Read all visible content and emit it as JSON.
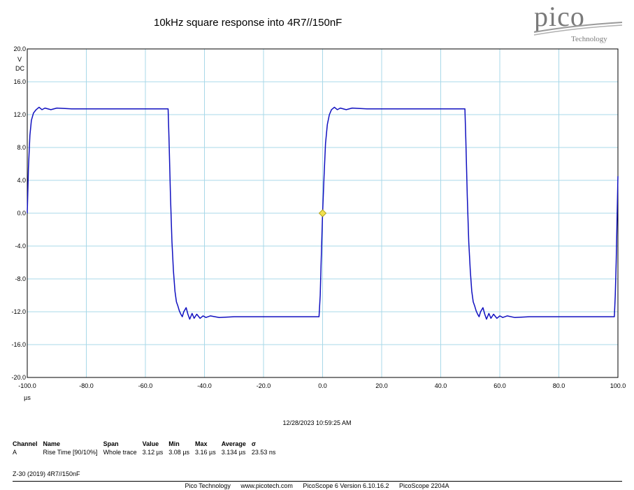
{
  "chart_data": {
    "type": "line",
    "title": "10kHz square response into 4R7//150nF",
    "ylabel_lines": [
      "V",
      "DC"
    ],
    "xlabel": "µs",
    "xlim": [
      -100,
      100
    ],
    "ylim": [
      -20,
      20
    ],
    "x_ticks": [
      "-100.0",
      "-80.0",
      "-60.0",
      "-40.0",
      "-20.0",
      "0.0",
      "20.0",
      "40.0",
      "60.0",
      "80.0",
      "100.0"
    ],
    "y_ticks": [
      "20.0",
      "16.0",
      "12.0",
      "8.0",
      "4.0",
      "0.0",
      "-4.0",
      "-8.0",
      "-12.0",
      "-16.0",
      "-20.0"
    ],
    "grid": true,
    "trigger_marker": {
      "x": 0,
      "y": 0,
      "color": "#f0e050"
    },
    "series": [
      {
        "color": "#1010c0",
        "points": [
          [
            -100,
            0
          ],
          [
            -99.6,
            5.5
          ],
          [
            -99.1,
            9.5
          ],
          [
            -98.6,
            11.3
          ],
          [
            -97.9,
            12.2
          ],
          [
            -97,
            12.6
          ],
          [
            -96,
            12.9
          ],
          [
            -95,
            12.6
          ],
          [
            -94,
            12.8
          ],
          [
            -92,
            12.6
          ],
          [
            -90,
            12.8
          ],
          [
            -85,
            12.7
          ],
          [
            -80,
            12.7
          ],
          [
            -70,
            12.7
          ],
          [
            -60,
            12.7
          ],
          [
            -52.3,
            12.7
          ],
          [
            -52,
            9.0
          ],
          [
            -51.5,
            2.0
          ],
          [
            -51,
            -3.5
          ],
          [
            -50.5,
            -7.0
          ],
          [
            -50,
            -9.5
          ],
          [
            -49.5,
            -10.8
          ],
          [
            -49,
            -11.3
          ],
          [
            -48.5,
            -11.9
          ],
          [
            -48,
            -12.3
          ],
          [
            -47.5,
            -12.6
          ],
          [
            -47,
            -12.0
          ],
          [
            -46.2,
            -11.5
          ],
          [
            -45.6,
            -12.3
          ],
          [
            -45,
            -12.9
          ],
          [
            -44.2,
            -12.2
          ],
          [
            -43.5,
            -12.8
          ],
          [
            -42.6,
            -12.3
          ],
          [
            -41.5,
            -12.8
          ],
          [
            -40.5,
            -12.5
          ],
          [
            -39.5,
            -12.7
          ],
          [
            -38,
            -12.5
          ],
          [
            -35,
            -12.7
          ],
          [
            -30,
            -12.6
          ],
          [
            -20,
            -12.6
          ],
          [
            -10,
            -12.6
          ],
          [
            -1.2,
            -12.6
          ],
          [
            -0.8,
            -10.0
          ],
          [
            -0.5,
            -6.0
          ],
          [
            0,
            0
          ],
          [
            0.5,
            4.5
          ],
          [
            1,
            8.5
          ],
          [
            1.6,
            10.8
          ],
          [
            2.3,
            12.0
          ],
          [
            3,
            12.6
          ],
          [
            4,
            12.9
          ],
          [
            5,
            12.6
          ],
          [
            6,
            12.8
          ],
          [
            8,
            12.6
          ],
          [
            10,
            12.8
          ],
          [
            15,
            12.7
          ],
          [
            20,
            12.7
          ],
          [
            30,
            12.7
          ],
          [
            40,
            12.7
          ],
          [
            48.2,
            12.7
          ],
          [
            48.5,
            9.0
          ],
          [
            49,
            2.0
          ],
          [
            49.5,
            -3.5
          ],
          [
            50,
            -7.0
          ],
          [
            50.5,
            -9.5
          ],
          [
            51,
            -10.8
          ],
          [
            51.5,
            -11.3
          ],
          [
            52,
            -11.9
          ],
          [
            52.5,
            -12.3
          ],
          [
            53,
            -12.6
          ],
          [
            53.5,
            -12.0
          ],
          [
            54.3,
            -11.5
          ],
          [
            54.9,
            -12.3
          ],
          [
            55.5,
            -12.9
          ],
          [
            56.3,
            -12.2
          ],
          [
            57,
            -12.8
          ],
          [
            57.9,
            -12.3
          ],
          [
            59,
            -12.8
          ],
          [
            60,
            -12.5
          ],
          [
            61,
            -12.7
          ],
          [
            62.5,
            -12.5
          ],
          [
            65,
            -12.7
          ],
          [
            70,
            -12.6
          ],
          [
            80,
            -12.6
          ],
          [
            90,
            -12.6
          ],
          [
            98.8,
            -12.6
          ],
          [
            99.1,
            -10.0
          ],
          [
            99.4,
            -6.0
          ],
          [
            99.7,
            -1.0
          ],
          [
            100,
            4.5
          ]
        ]
      }
    ]
  },
  "timestamp": "12/28/2023 10:59:25 AM",
  "measurements": {
    "headers": [
      "Channel",
      "Name",
      "Span",
      "Value",
      "Min",
      "Max",
      "Average",
      "σ"
    ],
    "rows": [
      [
        "A",
        "Rise Time  [90/10%]",
        "Whole trace",
        "3.12 µs",
        "3.08 µs",
        "3.16 µs",
        "3.134 µs",
        "23.53 ns"
      ]
    ]
  },
  "note": "Z-30 (2019) 4R7//150nF",
  "logo": {
    "word": "pico",
    "sub": "Technology"
  },
  "footer": {
    "company": "Pico Technology",
    "url": "www.picotech.com",
    "version": "PicoScope 6 Version 6.10.16.2",
    "device": "PicoScope 2204A"
  }
}
